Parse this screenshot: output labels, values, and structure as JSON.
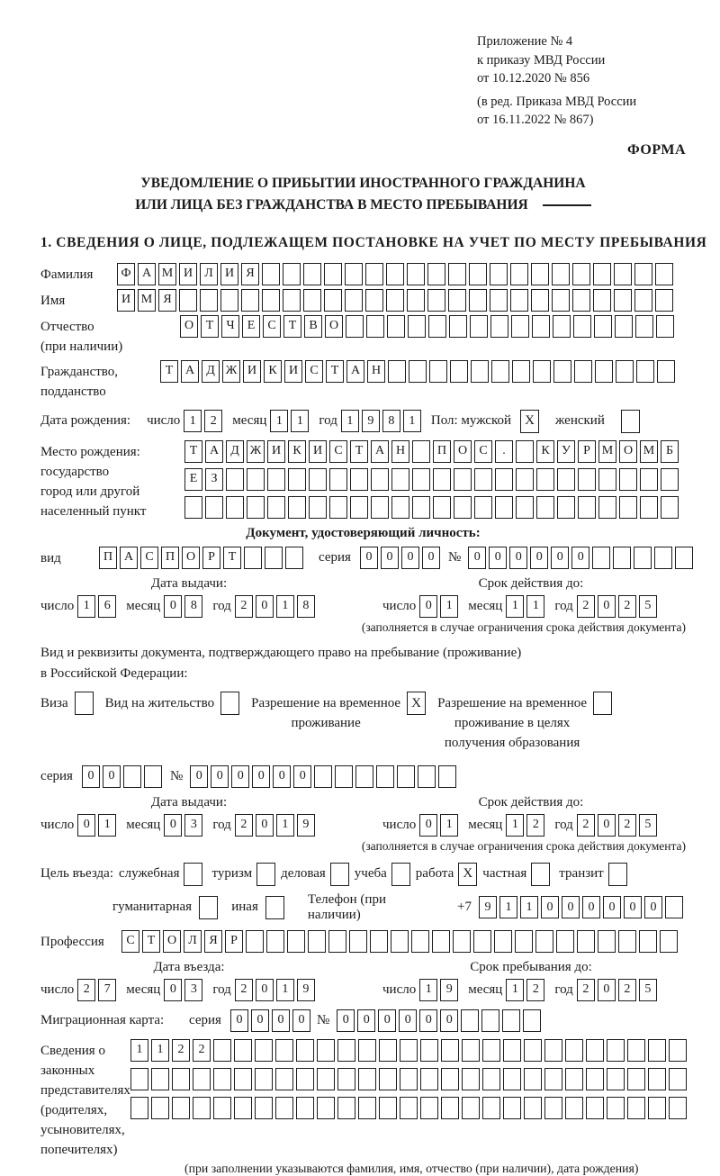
{
  "appendix": {
    "block1": [
      "Приложение № 4",
      "к приказу МВД России",
      "от 10.12.2020 № 856"
    ],
    "block2": [
      "(в ред. Приказа МВД России",
      "от 16.11.2022 № 867)"
    ],
    "forma": "ФОРМА"
  },
  "title": {
    "line1": "УВЕДОМЛЕНИЕ О ПРИБЫТИИ ИНОСТРАННОГО ГРАЖДАНИНА",
    "line2": "ИЛИ ЛИЦА БЕЗ ГРАЖДАНСТВА В МЕСТО ПРЕБЫВАНИЯ"
  },
  "section1_heading": "1. СВЕДЕНИЯ О ЛИЦЕ, ПОДЛЕЖАЩЕМ ПОСТАНОВКЕ НА УЧЕТ ПО МЕСТУ ПРЕБЫВАНИЯ",
  "labels": {
    "day": "число",
    "month": "месяц",
    "year": "год",
    "series": "серия",
    "number": "№",
    "issue_date": "Дата выдачи:",
    "valid_until": "Срок действия до:",
    "limit_note": "(заполняется в случае ограничения срока действия документа)"
  },
  "person": {
    "surname": {
      "label": "Фамилия",
      "boxes": {
        "value": "ФАМИЛИЯ",
        "cells": 27
      }
    },
    "name": {
      "label": "Имя",
      "boxes": {
        "value": "ИМЯ",
        "cells": 27
      }
    },
    "patronymic": {
      "label_lines": [
        "Отчество",
        "(при наличии)"
      ],
      "boxes": {
        "value": "ОТЧЕСТВО",
        "cells": 24
      }
    },
    "citizenship": {
      "label_lines": [
        "Гражданство,",
        "подданство"
      ],
      "boxes": {
        "value": "ТАДЖИКИСТАН",
        "cells": 25
      }
    },
    "birth_date": {
      "label": "Дата рождения:",
      "day": "12",
      "month": "11",
      "year": "1981"
    },
    "gender": {
      "male_label": "Пол: мужской",
      "female_label": "женский",
      "male_checked": true,
      "female_checked": false
    },
    "birth_place": {
      "label_lines": [
        "Место рождения:",
        "государство",
        "город или другой",
        "населенный пункт"
      ],
      "rows": [
        {
          "value": "ТАДЖИКИСТАН ПОС. КУРМОМБ",
          "cells": 24
        },
        {
          "value": "ЕЗ",
          "cells": 24
        },
        {
          "value": "",
          "cells": 24
        }
      ]
    }
  },
  "identity_doc": {
    "heading": "Документ, удостоверяющий личность:",
    "type_label": "вид",
    "type": {
      "value": "ПАСПОРТ",
      "cells": 10
    },
    "series": {
      "value": "0000",
      "cells": 4
    },
    "number": {
      "value": "000000",
      "cells": 11
    },
    "issued": {
      "day": "16",
      "month": "08",
      "year": "2018"
    },
    "valid": {
      "day": "01",
      "month": "11",
      "year": "2025"
    }
  },
  "residence_doc": {
    "intro1": "Вид и реквизиты документа, подтверждающего право на пребывание (проживание)",
    "intro2": "в Российской Федерации:",
    "options": [
      {
        "label_lines": [
          "Виза"
        ],
        "checked": false
      },
      {
        "label_lines": [
          "Вид на жительство"
        ],
        "checked": false
      },
      {
        "label_lines": [
          "Разрешение на временное",
          "проживание"
        ],
        "checked": true
      },
      {
        "label_lines": [
          "Разрешение на временное",
          "проживание в целях",
          "получения образования"
        ],
        "checked": false
      }
    ],
    "series": {
      "value": "00",
      "cells": 4
    },
    "number": {
      "value": "000000",
      "cells": 13
    },
    "issued": {
      "day": "01",
      "month": "03",
      "year": "2019"
    },
    "valid": {
      "day": "01",
      "month": "12",
      "year": "2025"
    }
  },
  "visit": {
    "purpose_label": "Цель въезда:",
    "options_row1": [
      {
        "label": "служебная",
        "checked": false
      },
      {
        "label": "туризм",
        "checked": false
      },
      {
        "label": "деловая",
        "checked": false
      },
      {
        "label": "учеба",
        "checked": false
      },
      {
        "label": "работа",
        "checked": true
      },
      {
        "label": "частная",
        "checked": false
      },
      {
        "label": "транзит",
        "checked": false
      }
    ],
    "options_row2": [
      {
        "label": "гуманитарная",
        "checked": false
      },
      {
        "label": "иная",
        "checked": false
      }
    ],
    "phone_label": "Телефон (при наличии)",
    "phone_prefix": "+7",
    "phone": {
      "value": "911000000",
      "cells": 10
    },
    "profession_label": "Профессия",
    "profession": {
      "value": "СТОЛЯР",
      "cells": 27
    },
    "entry_date_label": "Дата въезда:",
    "stay_until_label": "Срок пребывания до:",
    "entry": {
      "day": "27",
      "month": "03",
      "year": "2019"
    },
    "stay": {
      "day": "19",
      "month": "12",
      "year": "2025"
    }
  },
  "migration_card": {
    "label": "Миграционная карта:",
    "series": {
      "value": "0000",
      "cells": 4
    },
    "number": {
      "value": "000000",
      "cells": 10
    }
  },
  "representatives": {
    "label_lines": [
      "Сведения о",
      "законных",
      "представителях",
      "(родителях,",
      "усыновителях,",
      "попечителях)"
    ],
    "rows": [
      {
        "value": "1122",
        "cells": 27
      },
      {
        "value": "",
        "cells": 27
      },
      {
        "value": "",
        "cells": 27
      }
    ],
    "note": "(при заполнении указываются фамилия, имя, отчество (при наличии), дата рождения)"
  }
}
